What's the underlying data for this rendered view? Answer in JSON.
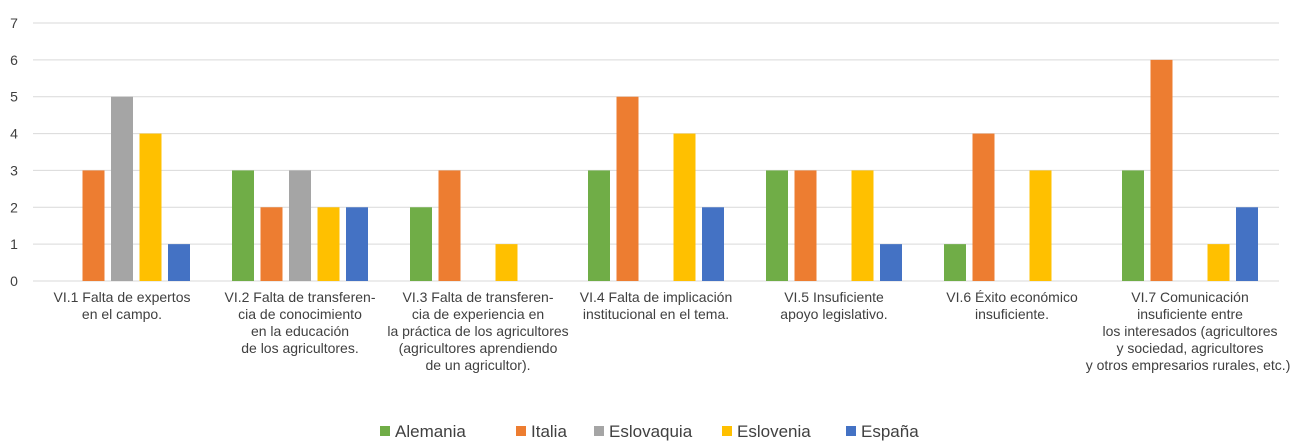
{
  "chart_data": {
    "type": "bar",
    "categories": [
      "VI.1 Falta de expertos\nen el campo.",
      "VI.2 Falta de transferen-\ncia de conocimiento\nen la educación\nde los agricultores.",
      "VI.3 Falta de transferen-\ncia de experiencia en\nla práctica de los agricultores\n(agricultores aprendiendo\nde un agricultor).",
      "VI.4 Falta de implicación\ninstitucional en el tema.",
      "VI.5 Insuficiente\napoyo legislativo.",
      "VI.6 Éxito económico\ninsuficiente.",
      "VI.7 Comunicación\ninsuficiente entre\nlos interesados (agricultores\ny sociedad, agricultores\ny otros empresarios rurales, etc.)."
    ],
    "series": [
      {
        "name": "Alemania",
        "color": "#70ad47",
        "values": [
          0,
          3,
          2,
          3,
          3,
          1,
          3
        ]
      },
      {
        "name": "Italia",
        "color": "#ed7d31",
        "values": [
          3,
          2,
          3,
          5,
          3,
          4,
          6
        ]
      },
      {
        "name": "Eslovaquia",
        "color": "#a5a5a5",
        "values": [
          5,
          3,
          0,
          0,
          0,
          0,
          0
        ]
      },
      {
        "name": "Eslovenia",
        "color": "#ffc000",
        "values": [
          4,
          2,
          1,
          4,
          3,
          3,
          1
        ]
      },
      {
        "name": "España",
        "color": "#4472c4",
        "values": [
          1,
          2,
          0,
          2,
          1,
          0,
          2
        ]
      }
    ],
    "ylim": [
      0,
      7
    ],
    "yticks": [
      0,
      1,
      2,
      3,
      4,
      5,
      6,
      7
    ],
    "grid": true,
    "legend": "bottom"
  }
}
